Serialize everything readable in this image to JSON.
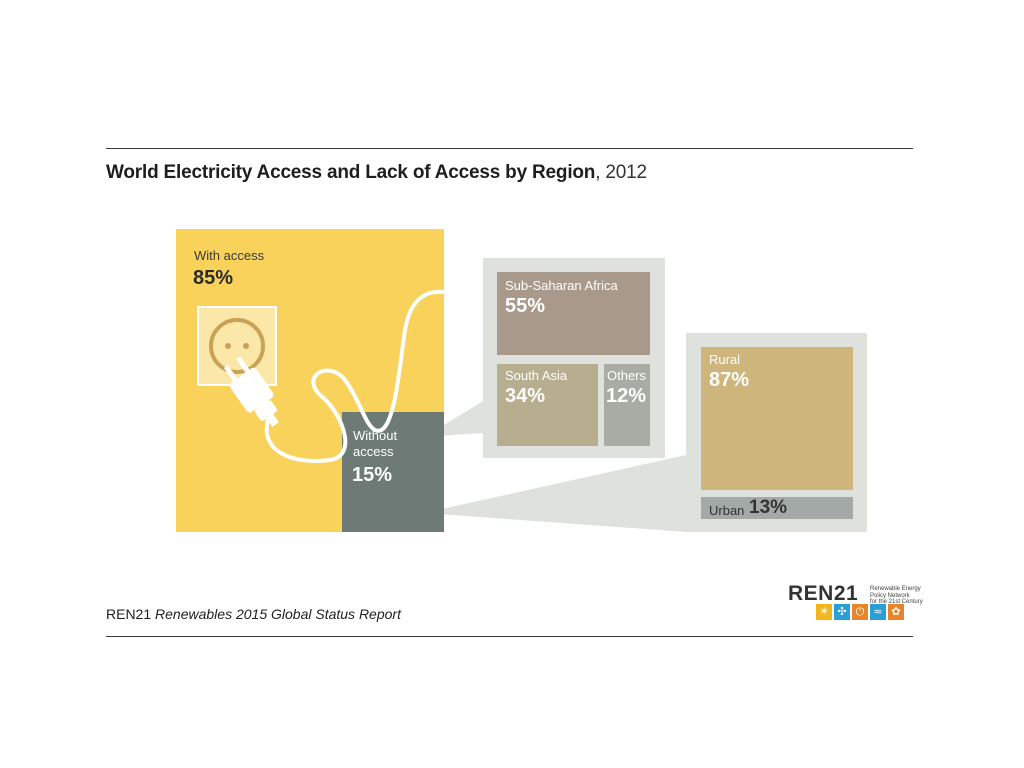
{
  "title": {
    "main": "World Electricity Access and Lack of Access by Region",
    "year": ", 2012"
  },
  "footer": {
    "org": "REN21",
    "report": "Renewables 2015 Global Status Report"
  },
  "logo": {
    "word": "REN",
    "num": "21",
    "subtitle": "Renewable Energy\nPolicy Network\nfor the 21st Century",
    "icons": [
      "sun-icon",
      "wind-icon",
      "power-icon",
      "water-icon",
      "leaf-icon"
    ],
    "icon_colors": [
      "#f2b51c",
      "#2a9fd6",
      "#e8842b",
      "#2a9fd6",
      "#e8842b"
    ]
  },
  "colors": {
    "with_access": "#f8d25a",
    "without_access": "#6e7a75",
    "panel_bg": "#dfe2dc",
    "sub_saharan": "#a8998a",
    "south_asia": "#b6ae8f",
    "others": "#a8aca4",
    "rural": "#cdb57c",
    "urban": "#a2a9a7"
  },
  "chart_data": {
    "type": "treemap",
    "title": "World Electricity Access and Lack of Access by Region, 2012",
    "levels": [
      {
        "name": "world",
        "items": [
          {
            "label": "With access",
            "value": 85,
            "display": "85%"
          },
          {
            "label": "Without\naccess",
            "value": 15,
            "display": "15%"
          }
        ]
      },
      {
        "name": "without_access_by_region",
        "parent": "Without access",
        "items": [
          {
            "label": "Sub-Saharan Africa",
            "value": 55,
            "display": "55%"
          },
          {
            "label": "South Asia",
            "value": 34,
            "display": "34%"
          },
          {
            "label": "Others",
            "value": 12,
            "display": "12%"
          }
        ]
      },
      {
        "name": "without_access_by_area",
        "parent": "Without access",
        "items": [
          {
            "label": "Rural",
            "value": 87,
            "display": "87%"
          },
          {
            "label": "Urban",
            "value": 13,
            "display": "13%"
          }
        ]
      }
    ]
  }
}
